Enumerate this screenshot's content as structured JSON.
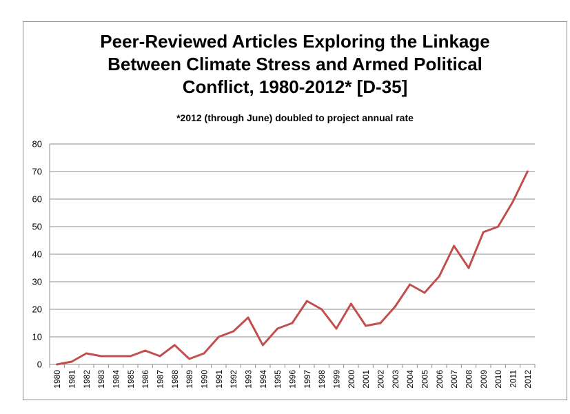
{
  "chart_data": {
    "type": "line",
    "title": "Peer-Reviewed Articles Exploring the Linkage\nBetween Climate Stress and Armed Political\nConflict, 1980-2012* [D-35]",
    "subtitle": "*2012 (through June) doubled to project annual rate",
    "xlabel": "",
    "ylabel": "",
    "ylim": [
      0,
      80
    ],
    "yticks": [
      0,
      10,
      20,
      30,
      40,
      50,
      60,
      70,
      80
    ],
    "grid": "horizontal",
    "legend": "none",
    "line_color": "#c0504d",
    "x": [
      "1980",
      "1981",
      "1982",
      "1983",
      "1984",
      "1985",
      "1986",
      "1987",
      "1988",
      "1989",
      "1990",
      "1991",
      "1992",
      "1993",
      "1994",
      "1995",
      "1996",
      "1997",
      "1998",
      "1999",
      "2000",
      "2001",
      "2002",
      "2003",
      "2004",
      "2005",
      "2006",
      "2007",
      "2008",
      "2009",
      "2010",
      "2011",
      "2012"
    ],
    "series": [
      {
        "values": [
          0,
          1,
          4,
          3,
          3,
          3,
          5,
          3,
          7,
          2,
          4,
          10,
          12,
          17,
          7,
          13,
          15,
          23,
          20,
          13,
          22,
          14,
          15,
          21,
          29,
          26,
          32,
          43,
          35,
          48,
          50,
          59,
          70
        ]
      }
    ]
  }
}
